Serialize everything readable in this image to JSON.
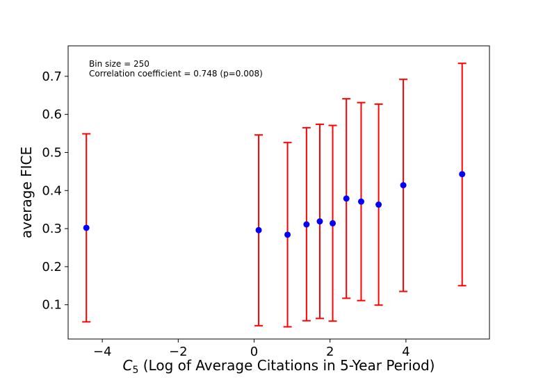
{
  "chart_data": {
    "type": "scatter",
    "title": "",
    "xlabel_prefix": "C",
    "xlabel_subscript": "5",
    "xlabel_rest": " (Log of Average Citations in 5-Year Period)",
    "ylabel": "average FICE",
    "xlim": [
      -4.9,
      6.2
    ],
    "ylim": [
      0.01,
      0.78
    ],
    "xticks": [
      -4,
      -2,
      0,
      2,
      4
    ],
    "xtick_labels": [
      "−4",
      "−2",
      "0",
      "2",
      "4"
    ],
    "yticks": [
      0.1,
      0.2,
      0.3,
      0.4,
      0.5,
      0.6,
      0.7
    ],
    "ytick_labels": [
      "0.1",
      "0.2",
      "0.3",
      "0.4",
      "0.5",
      "0.6",
      "0.7"
    ],
    "annotations": [
      "Bin size = 250",
      "Correlation coefficient = 0.748 (p=0.008)"
    ],
    "series": [
      {
        "name": "average FICE",
        "x": [
          -4.42,
          0.12,
          0.88,
          1.38,
          1.73,
          2.07,
          2.43,
          2.82,
          3.28,
          3.93,
          5.48
        ],
        "y": [
          0.302,
          0.296,
          0.284,
          0.311,
          0.319,
          0.314,
          0.379,
          0.371,
          0.363,
          0.414,
          0.443
        ],
        "y_low": [
          0.055,
          0.045,
          0.042,
          0.058,
          0.064,
          0.057,
          0.117,
          0.111,
          0.099,
          0.135,
          0.15
        ],
        "y_high": [
          0.549,
          0.546,
          0.526,
          0.565,
          0.574,
          0.571,
          0.641,
          0.631,
          0.627,
          0.692,
          0.734
        ]
      }
    ],
    "colors": {
      "point": "#0000ff",
      "errorbar": "#ff0000",
      "axis": "#000000"
    }
  }
}
